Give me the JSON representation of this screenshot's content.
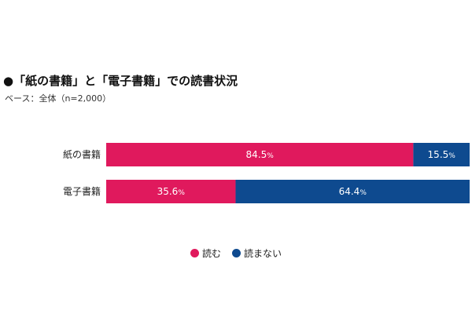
{
  "title": "●「紙の書籍」と「電子書籍」での読書状況",
  "subtitle": "ベース：全体（n=2,000）",
  "colors": {
    "read": "#e0195d",
    "not_read": "#0e4a8f"
  },
  "chart_data": {
    "type": "bar",
    "orientation": "horizontal",
    "stacked": true,
    "percent_sign": "%",
    "categories": [
      "紙の書籍",
      "電子書籍"
    ],
    "series": [
      {
        "name": "読む",
        "values": [
          84.5,
          35.6
        ]
      },
      {
        "name": "読まない",
        "values": [
          15.5,
          64.4
        ]
      }
    ],
    "xlim": [
      0,
      100
    ],
    "legend_position": "bottom"
  }
}
